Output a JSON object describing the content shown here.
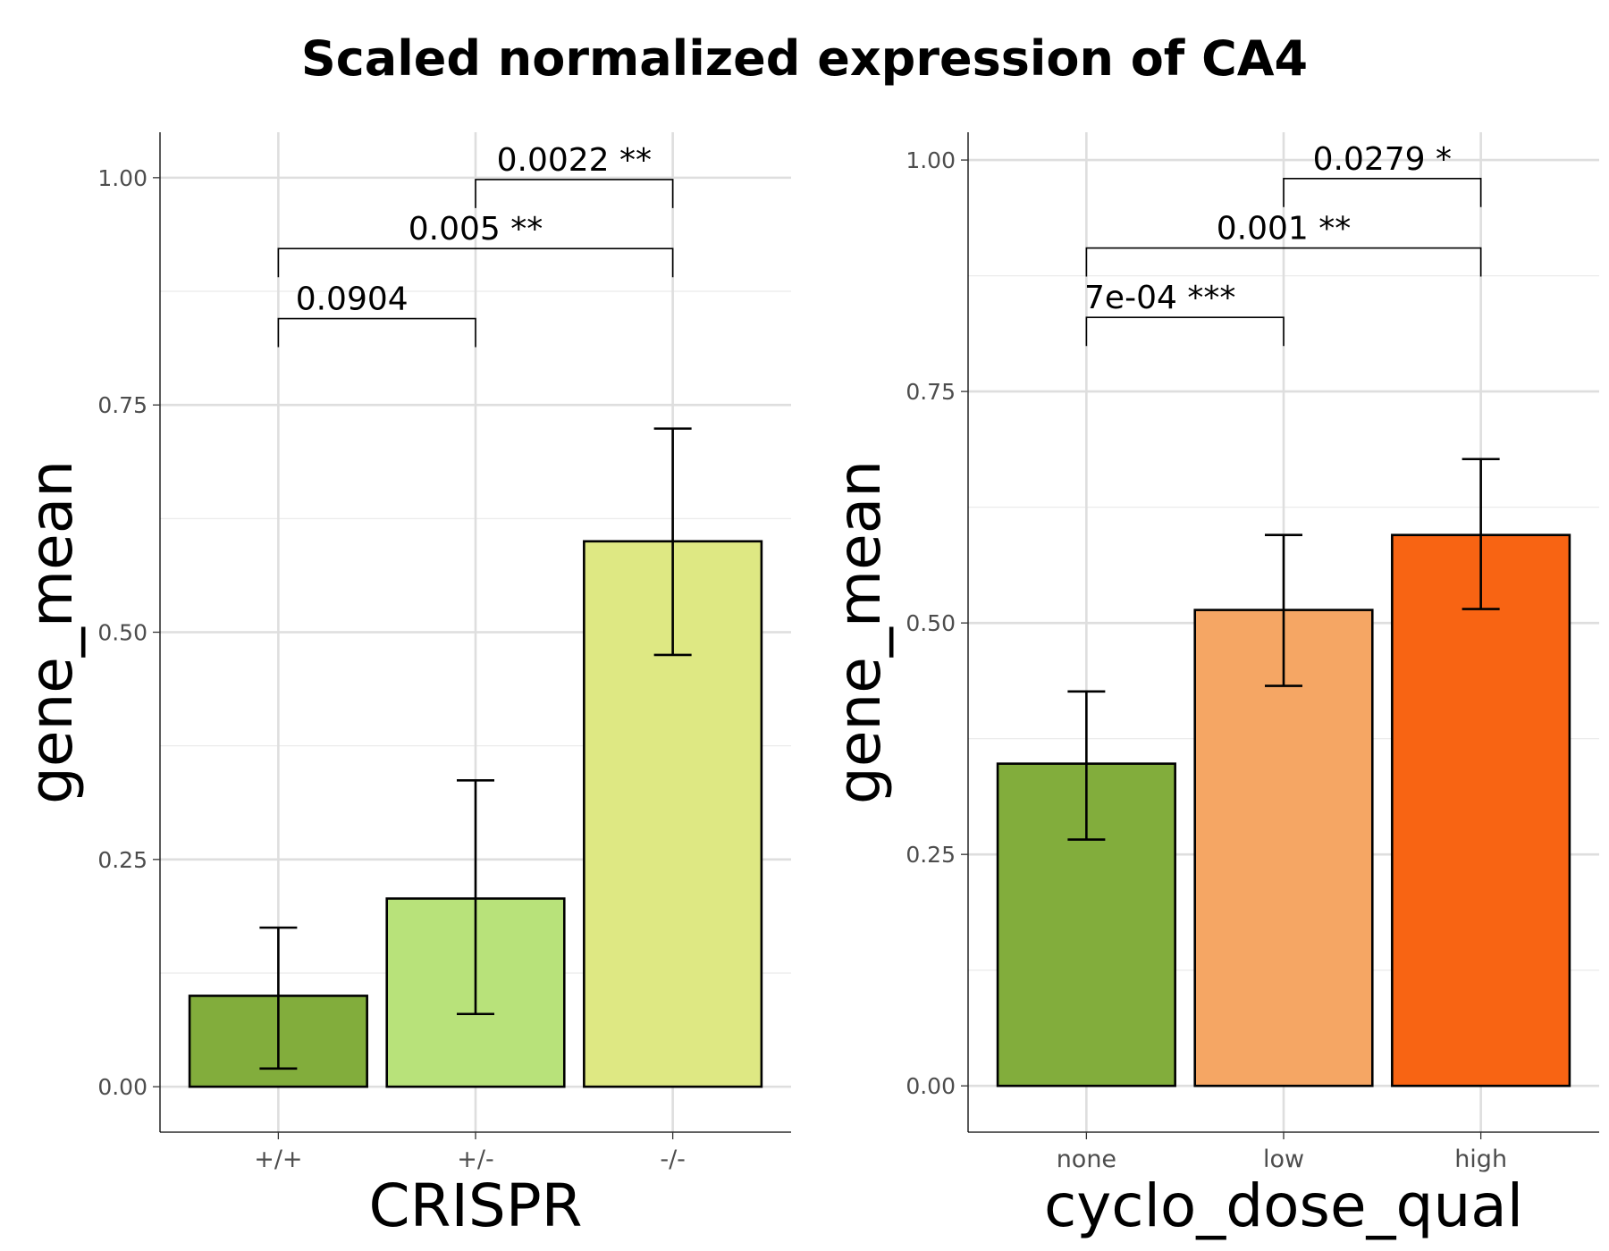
{
  "title": "Scaled normalized expression of CA4",
  "chart_data": [
    {
      "type": "bar",
      "xlabel": "CRISPR",
      "ylabel": "gene_mean",
      "ylim": [
        -0.05,
        1.05
      ],
      "yticks": [
        0.0,
        0.25,
        0.5,
        0.75,
        1.0
      ],
      "ytick_labels": [
        "0.00",
        "0.25",
        "0.50",
        "0.75",
        "1.00"
      ],
      "grid": true,
      "categories": [
        "+/+",
        "+/-",
        "-/-"
      ],
      "values": [
        0.1,
        0.207,
        0.6
      ],
      "error_low": [
        0.02,
        0.08,
        0.475
      ],
      "error_high": [
        0.175,
        0.337,
        0.724
      ],
      "colors": [
        "#82ad3c",
        "#b8e27a",
        "#dee883"
      ],
      "comparisons": [
        {
          "from": 0,
          "to": 1,
          "y": 0.845,
          "label": "0.0904"
        },
        {
          "from": 0,
          "to": 2,
          "y": 0.922,
          "label": "0.005 **"
        },
        {
          "from": 1,
          "to": 2,
          "y": 0.998,
          "label": "0.0022 **"
        }
      ]
    },
    {
      "type": "bar",
      "xlabel": "cyclo_dose_qual",
      "ylabel": "gene_mean",
      "ylim": [
        -0.05,
        1.03
      ],
      "yticks": [
        0.0,
        0.25,
        0.5,
        0.75,
        1.0
      ],
      "ytick_labels": [
        "0.00",
        "0.25",
        "0.50",
        "0.75",
        "1.00"
      ],
      "grid": true,
      "categories": [
        "none",
        "low",
        "high"
      ],
      "values": [
        0.348,
        0.514,
        0.595
      ],
      "error_low": [
        0.266,
        0.432,
        0.515
      ],
      "error_high": [
        0.426,
        0.595,
        0.677
      ],
      "colors": [
        "#82ad3c",
        "#f5a664",
        "#f86413"
      ],
      "comparisons": [
        {
          "from": 0,
          "to": 1,
          "y": 0.83,
          "label": "7e-04 ***"
        },
        {
          "from": 0,
          "to": 2,
          "y": 0.905,
          "label": "0.001 **"
        },
        {
          "from": 1,
          "to": 2,
          "y": 0.98,
          "label": "0.0279 *"
        }
      ]
    }
  ]
}
